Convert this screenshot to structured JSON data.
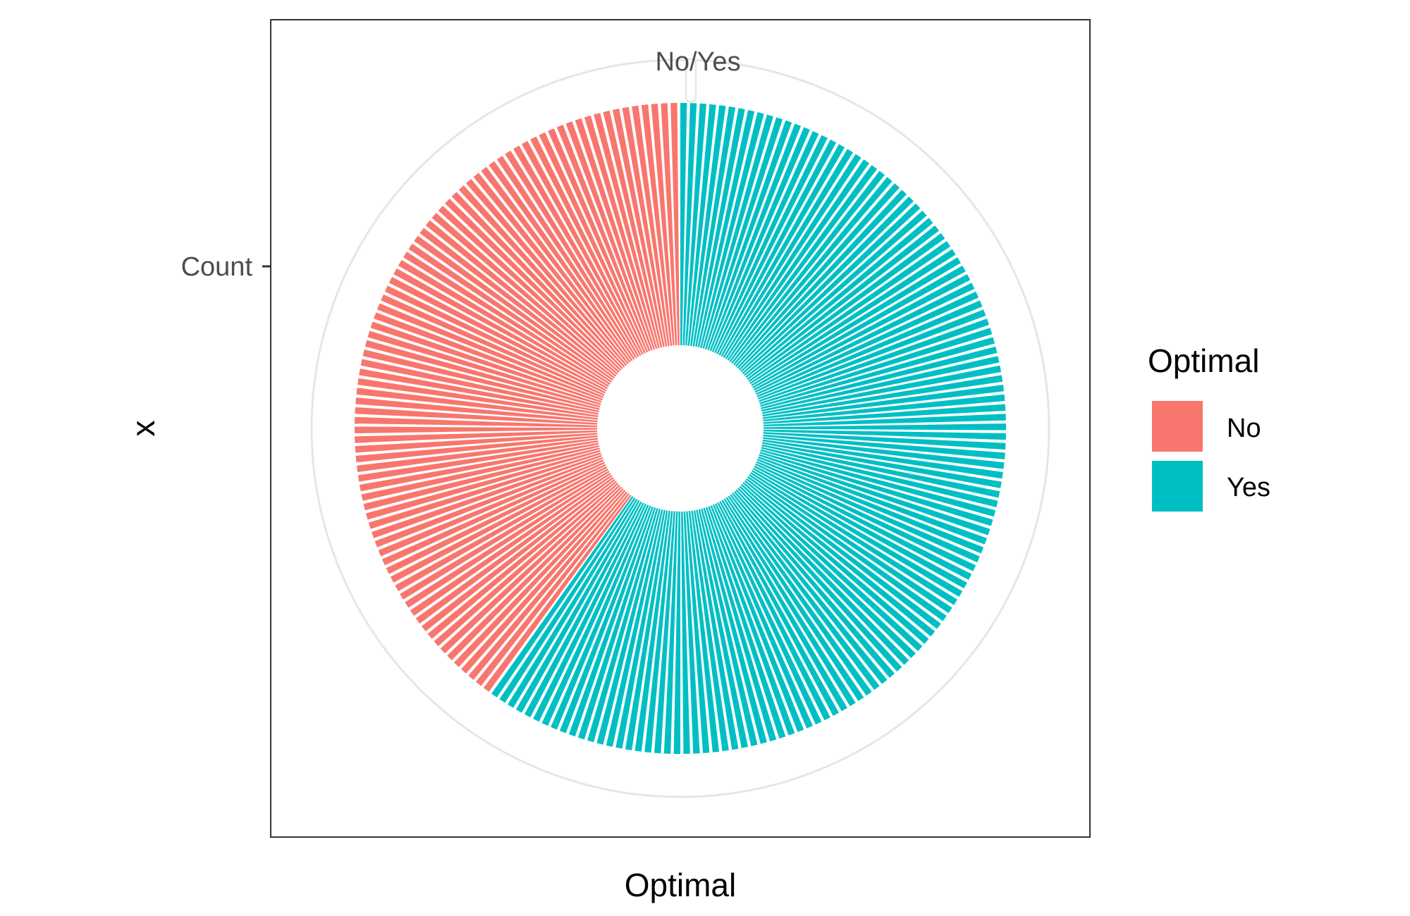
{
  "chart_data": {
    "type": "bar",
    "coord": "polar",
    "x_axis": {
      "title": "Optimal",
      "tick_label": "No/Yes"
    },
    "y_axis": {
      "title": "x",
      "tick_label": "Count"
    },
    "legend": {
      "title": "Optimal",
      "placement": "right",
      "entries": [
        {
          "label": "No",
          "color": "#F8766D"
        },
        {
          "label": "Yes",
          "color": "#00BFC4"
        }
      ]
    },
    "series": [
      {
        "name": "No",
        "color": "#F8766D",
        "fraction_of_circle": 0.4
      },
      {
        "name": "Yes",
        "color": "#00BFC4",
        "fraction_of_circle": 0.6
      }
    ],
    "grid": true,
    "panel_border": true
  }
}
